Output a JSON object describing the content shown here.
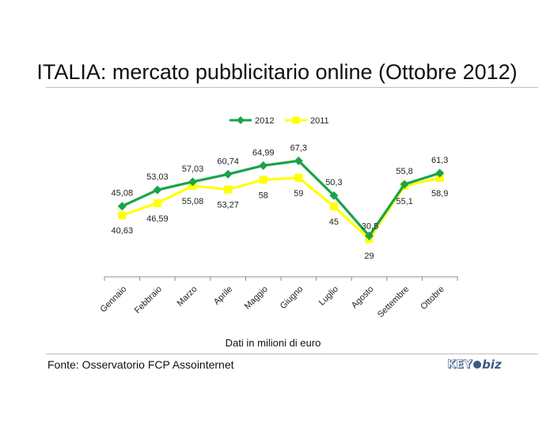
{
  "chart_data": {
    "type": "line",
    "title": "ITALIA: mercato pubblicitario online (Ottobre 2012)",
    "xlabel": "Dati in milioni di euro",
    "ylabel": "",
    "categories": [
      "Gennaio",
      "Febbraio",
      "Marzo",
      "Aprile",
      "Maggio",
      "Giugno",
      "Luglio",
      "Agosto",
      "Settembre",
      "Ottobre"
    ],
    "series": [
      {
        "name": "2012",
        "color": "#1aa34a",
        "marker": "diamond",
        "values": [
          45.08,
          53.03,
          57.03,
          60.74,
          64.99,
          67.3,
          50.3,
          30.5,
          55.8,
          61.3
        ],
        "labels": [
          "45,08",
          "53,03",
          "57,03",
          "60,74",
          "64,99",
          "67,3",
          "50,3",
          "30,5",
          "55,8",
          "61,3"
        ]
      },
      {
        "name": "2011",
        "color": "#ffff00",
        "marker": "square",
        "values": [
          40.63,
          46.59,
          55.08,
          53.27,
          58,
          59,
          45,
          29,
          55.1,
          58.9
        ],
        "labels": [
          "40,63",
          "46,59",
          "55,08",
          "53,27",
          "58",
          "59",
          "45",
          "29",
          "55,1",
          "58,9"
        ]
      }
    ],
    "legend_position": "top",
    "grid": false
  },
  "footer": {
    "source": "Fonte: Osservatorio FCP Assointernet",
    "logo_key": "KEY",
    "logo_biz": "biz"
  }
}
